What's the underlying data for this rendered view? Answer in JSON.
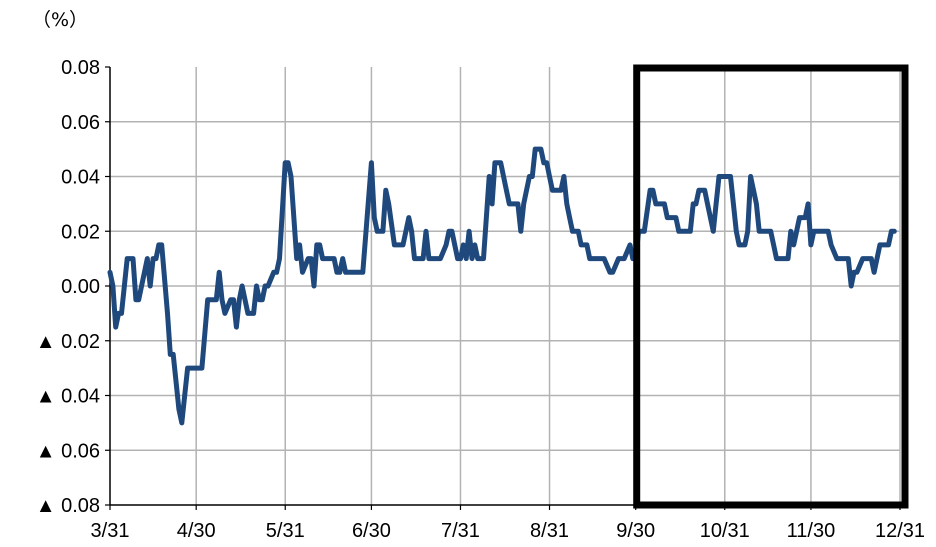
{
  "chart_data": {
    "type": "line",
    "unit_label": "（%）",
    "title": "",
    "xlabel": "",
    "ylabel": "",
    "x_ticks": [
      "3/31",
      "4/30",
      "5/31",
      "6/30",
      "7/31",
      "8/31",
      "9/30",
      "10/31",
      "11/30",
      "12/31"
    ],
    "y_ticks": [
      {
        "value": 0.08,
        "label": "0.08"
      },
      {
        "value": 0.06,
        "label": "0.06"
      },
      {
        "value": 0.04,
        "label": "0.04"
      },
      {
        "value": 0.02,
        "label": "0.02"
      },
      {
        "value": 0.0,
        "label": "0.00"
      },
      {
        "value": -0.02,
        "label": "▲ 0.02"
      },
      {
        "value": -0.04,
        "label": "▲ 0.04"
      },
      {
        "value": -0.06,
        "label": "▲ 0.06"
      },
      {
        "value": -0.08,
        "label": "▲ 0.08"
      }
    ],
    "ylim": [
      -0.08,
      0.08
    ],
    "grid": true,
    "highlight_range": [
      "9/30",
      "12/31"
    ],
    "series_color": "#1F497D",
    "highlight_color": "#000000",
    "series": [
      {
        "points": [
          [
            "3/31",
            0.005
          ],
          [
            "4/1",
            0.0
          ],
          [
            "4/2",
            -0.015
          ],
          [
            "4/3",
            -0.01
          ],
          [
            "4/4",
            -0.01
          ],
          [
            "4/6",
            0.01
          ],
          [
            "4/7",
            0.01
          ],
          [
            "4/8",
            0.01
          ],
          [
            "4/9",
            -0.005
          ],
          [
            "4/10",
            -0.005
          ],
          [
            "4/13",
            0.01
          ],
          [
            "4/14",
            0.0
          ],
          [
            "4/15",
            0.01
          ],
          [
            "4/16",
            0.01
          ],
          [
            "4/17",
            0.015
          ],
          [
            "4/18",
            0.015
          ],
          [
            "4/20",
            -0.01
          ],
          [
            "4/21",
            -0.025
          ],
          [
            "4/22",
            -0.025
          ],
          [
            "4/24",
            -0.045
          ],
          [
            "4/25",
            -0.05
          ],
          [
            "4/27",
            -0.03
          ],
          [
            "4/28",
            -0.03
          ],
          [
            "5/1",
            -0.03
          ],
          [
            "5/2",
            -0.03
          ],
          [
            "5/4",
            -0.005
          ],
          [
            "5/5",
            -0.005
          ],
          [
            "5/7",
            -0.005
          ],
          [
            "5/8",
            0.005
          ],
          [
            "5/9",
            -0.005
          ],
          [
            "5/10",
            -0.01
          ],
          [
            "5/12",
            -0.005
          ],
          [
            "5/13",
            -0.005
          ],
          [
            "5/14",
            -0.015
          ],
          [
            "5/15",
            -0.005
          ],
          [
            "5/16",
            0.0
          ],
          [
            "5/18",
            -0.01
          ],
          [
            "5/19",
            -0.01
          ],
          [
            "5/20",
            -0.01
          ],
          [
            "5/21",
            0.0
          ],
          [
            "5/22",
            -0.005
          ],
          [
            "5/23",
            -0.005
          ],
          [
            "5/24",
            0.0
          ],
          [
            "5/25",
            0.0
          ],
          [
            "5/27",
            0.005
          ],
          [
            "5/28",
            0.005
          ],
          [
            "5/29",
            0.01
          ],
          [
            "5/31",
            0.045
          ],
          [
            "6/1",
            0.045
          ],
          [
            "6/2",
            0.04
          ],
          [
            "6/4",
            0.01
          ],
          [
            "6/5",
            0.015
          ],
          [
            "6/6",
            0.005
          ],
          [
            "6/8",
            0.01
          ],
          [
            "6/9",
            0.01
          ],
          [
            "6/10",
            0.0
          ],
          [
            "6/11",
            0.015
          ],
          [
            "6/12",
            0.015
          ],
          [
            "6/13",
            0.01
          ],
          [
            "6/16",
            0.01
          ],
          [
            "6/17",
            0.01
          ],
          [
            "6/18",
            0.005
          ],
          [
            "6/19",
            0.005
          ],
          [
            "6/20",
            0.01
          ],
          [
            "6/21",
            0.005
          ],
          [
            "6/23",
            0.005
          ],
          [
            "6/25",
            0.005
          ],
          [
            "6/27",
            0.005
          ],
          [
            "6/30",
            0.045
          ],
          [
            "7/1",
            0.025
          ],
          [
            "7/2",
            0.02
          ],
          [
            "7/4",
            0.02
          ],
          [
            "7/5",
            0.035
          ],
          [
            "7/6",
            0.03
          ],
          [
            "7/8",
            0.015
          ],
          [
            "7/10",
            0.015
          ],
          [
            "7/11",
            0.015
          ],
          [
            "7/13",
            0.025
          ],
          [
            "7/14",
            0.02
          ],
          [
            "7/15",
            0.01
          ],
          [
            "7/16",
            0.01
          ],
          [
            "7/18",
            0.01
          ],
          [
            "7/19",
            0.02
          ],
          [
            "7/20",
            0.01
          ],
          [
            "7/22",
            0.01
          ],
          [
            "7/24",
            0.01
          ],
          [
            "7/26",
            0.015
          ],
          [
            "7/27",
            0.02
          ],
          [
            "7/28",
            0.02
          ],
          [
            "7/30",
            0.01
          ],
          [
            "7/31",
            0.01
          ],
          [
            "8/1",
            0.015
          ],
          [
            "8/2",
            0.01
          ],
          [
            "8/3",
            0.02
          ],
          [
            "8/4",
            0.01
          ],
          [
            "8/5",
            0.015
          ],
          [
            "8/6",
            0.01
          ],
          [
            "8/8",
            0.01
          ],
          [
            "8/10",
            0.04
          ],
          [
            "8/11",
            0.03
          ],
          [
            "8/12",
            0.045
          ],
          [
            "8/13",
            0.045
          ],
          [
            "8/14",
            0.045
          ],
          [
            "8/16",
            0.035
          ],
          [
            "8/17",
            0.03
          ],
          [
            "8/18",
            0.03
          ],
          [
            "8/20",
            0.03
          ],
          [
            "8/21",
            0.02
          ],
          [
            "8/22",
            0.03
          ],
          [
            "8/24",
            0.04
          ],
          [
            "8/25",
            0.04
          ],
          [
            "8/26",
            0.05
          ],
          [
            "8/27",
            0.05
          ],
          [
            "8/28",
            0.05
          ],
          [
            "8/29",
            0.045
          ],
          [
            "8/30",
            0.045
          ],
          [
            "8/31",
            0.04
          ],
          [
            "9/1",
            0.035
          ],
          [
            "9/2",
            0.035
          ],
          [
            "9/4",
            0.035
          ],
          [
            "9/5",
            0.04
          ],
          [
            "9/6",
            0.03
          ],
          [
            "9/7",
            0.025
          ],
          [
            "9/8",
            0.02
          ],
          [
            "9/10",
            0.02
          ],
          [
            "9/11",
            0.015
          ],
          [
            "9/13",
            0.015
          ],
          [
            "9/14",
            0.01
          ],
          [
            "9/15",
            0.01
          ],
          [
            "9/17",
            0.01
          ],
          [
            "9/19",
            0.01
          ],
          [
            "9/21",
            0.005
          ],
          [
            "9/22",
            0.005
          ],
          [
            "9/24",
            0.01
          ],
          [
            "9/25",
            0.01
          ],
          [
            "9/26",
            0.01
          ],
          [
            "9/28",
            0.015
          ],
          [
            "9/29",
            0.01
          ],
          [
            "9/30",
            0.01
          ],
          [
            "10/1",
            0.02
          ],
          [
            "10/2",
            0.02
          ],
          [
            "10/3",
            0.02
          ],
          [
            "10/5",
            0.035
          ],
          [
            "10/6",
            0.035
          ],
          [
            "10/7",
            0.03
          ],
          [
            "10/9",
            0.03
          ],
          [
            "10/10",
            0.03
          ],
          [
            "10/11",
            0.025
          ],
          [
            "10/13",
            0.025
          ],
          [
            "10/14",
            0.025
          ],
          [
            "10/15",
            0.02
          ],
          [
            "10/17",
            0.02
          ],
          [
            "10/18",
            0.02
          ],
          [
            "10/19",
            0.02
          ],
          [
            "10/20",
            0.03
          ],
          [
            "10/21",
            0.03
          ],
          [
            "10/22",
            0.035
          ],
          [
            "10/23",
            0.035
          ],
          [
            "10/24",
            0.035
          ],
          [
            "10/25",
            0.03
          ],
          [
            "10/27",
            0.02
          ],
          [
            "10/28",
            0.03
          ],
          [
            "10/29",
            0.04
          ],
          [
            "10/30",
            0.04
          ],
          [
            "11/1",
            0.04
          ],
          [
            "11/2",
            0.04
          ],
          [
            "11/4",
            0.02
          ],
          [
            "11/5",
            0.015
          ],
          [
            "11/6",
            0.015
          ],
          [
            "11/7",
            0.015
          ],
          [
            "11/8",
            0.02
          ],
          [
            "11/9",
            0.04
          ],
          [
            "11/10",
            0.035
          ],
          [
            "11/11",
            0.03
          ],
          [
            "11/12",
            0.02
          ],
          [
            "11/13",
            0.02
          ],
          [
            "11/14",
            0.02
          ],
          [
            "11/16",
            0.02
          ],
          [
            "11/17",
            0.015
          ],
          [
            "11/18",
            0.01
          ],
          [
            "11/19",
            0.01
          ],
          [
            "11/20",
            0.01
          ],
          [
            "11/22",
            0.01
          ],
          [
            "11/23",
            0.02
          ],
          [
            "11/24",
            0.015
          ],
          [
            "11/25",
            0.02
          ],
          [
            "11/26",
            0.025
          ],
          [
            "11/27",
            0.025
          ],
          [
            "11/28",
            0.025
          ],
          [
            "11/29",
            0.03
          ],
          [
            "11/30",
            0.015
          ],
          [
            "12/1",
            0.02
          ],
          [
            "12/2",
            0.02
          ],
          [
            "12/3",
            0.02
          ],
          [
            "12/4",
            0.02
          ],
          [
            "12/6",
            0.02
          ],
          [
            "12/7",
            0.015
          ],
          [
            "12/9",
            0.01
          ],
          [
            "12/10",
            0.01
          ],
          [
            "12/12",
            0.01
          ],
          [
            "12/13",
            0.01
          ],
          [
            "12/14",
            0.0
          ],
          [
            "12/15",
            0.005
          ],
          [
            "12/16",
            0.005
          ],
          [
            "12/18",
            0.01
          ],
          [
            "12/19",
            0.01
          ],
          [
            "12/20",
            0.01
          ],
          [
            "12/21",
            0.01
          ],
          [
            "12/22",
            0.005
          ],
          [
            "12/23",
            0.01
          ],
          [
            "12/24",
            0.015
          ],
          [
            "12/26",
            0.015
          ],
          [
            "12/27",
            0.015
          ],
          [
            "12/28",
            0.02
          ],
          [
            "12/29",
            0.02
          ]
        ]
      }
    ]
  }
}
